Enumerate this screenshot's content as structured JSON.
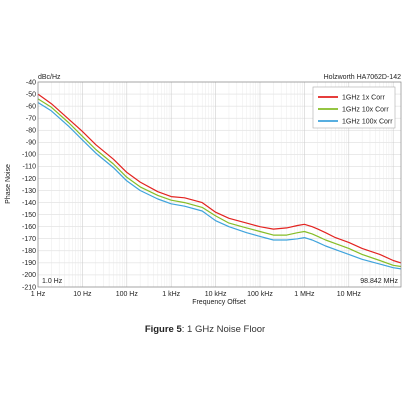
{
  "chart_data": {
    "type": "line",
    "title": "Holzworth HA7062D-142",
    "unit_label": "dBc/Hz",
    "xlabel": "Frequency Offset",
    "ylabel": "Phase Noise",
    "x_scale": "log",
    "xlim": [
      1,
      150000000
    ],
    "ylim": [
      -210,
      -40
    ],
    "x_ticks": [
      {
        "value": 1,
        "label": "1 Hz"
      },
      {
        "value": 10,
        "label": "10 Hz"
      },
      {
        "value": 100,
        "label": "100 Hz"
      },
      {
        "value": 1000,
        "label": "1 kHz"
      },
      {
        "value": 10000,
        "label": "10 kHz"
      },
      {
        "value": 100000,
        "label": "100 kHz"
      },
      {
        "value": 1000000,
        "label": "1 MHz"
      },
      {
        "value": 10000000,
        "label": "10 MHz"
      }
    ],
    "y_ticks": [
      -40,
      -50,
      -60,
      -70,
      -80,
      -90,
      -100,
      -110,
      -120,
      -130,
      -140,
      -150,
      -160,
      -170,
      -180,
      -190,
      -200,
      -210
    ],
    "grid": true,
    "legend_position": "top-right",
    "marker_left": "1.0 Hz",
    "marker_right": "98.842 MHz",
    "x": [
      1,
      2,
      5,
      10,
      20,
      50,
      100,
      200,
      500,
      1000,
      2000,
      5000,
      10000,
      20000,
      50000,
      100000,
      200000,
      400000,
      700000,
      1000000,
      1500000,
      2000000,
      3000000,
      5000000,
      10000000,
      20000000,
      50000000,
      100000000,
      150000000
    ],
    "series": [
      {
        "name": "1GHz 1x Corr",
        "color": "#e32320",
        "values": [
          -50,
          -58,
          -71,
          -81,
          -92,
          -104,
          -115,
          -123,
          -131,
          -135,
          -136,
          -140,
          -148,
          -153,
          -157,
          -160,
          -162,
          -161,
          -159,
          -158,
          -160,
          -162,
          -165,
          -169,
          -173,
          -178,
          -183,
          -188,
          -190
        ]
      },
      {
        "name": "1GHz 10x Corr",
        "color": "#86bd27",
        "values": [
          -54,
          -61,
          -74,
          -85,
          -96,
          -108,
          -119,
          -127,
          -134,
          -138,
          -140,
          -144,
          -151,
          -157,
          -161,
          -164,
          -167,
          -167,
          -165,
          -164,
          -166,
          -168,
          -171,
          -174,
          -178,
          -183,
          -188,
          -192,
          -193
        ]
      },
      {
        "name": "1GHz 100x Corr",
        "color": "#3fa3dc",
        "values": [
          -57,
          -64,
          -77,
          -88,
          -99,
          -111,
          -122,
          -130,
          -137,
          -141,
          -143,
          -147,
          -155,
          -160,
          -165,
          -168,
          -171,
          -171,
          -170,
          -169,
          -171,
          -173,
          -176,
          -179,
          -183,
          -187,
          -191,
          -194,
          -195
        ]
      }
    ]
  },
  "caption": {
    "prefix": "Figure 5",
    "text": ": 1 GHz Noise Floor"
  }
}
